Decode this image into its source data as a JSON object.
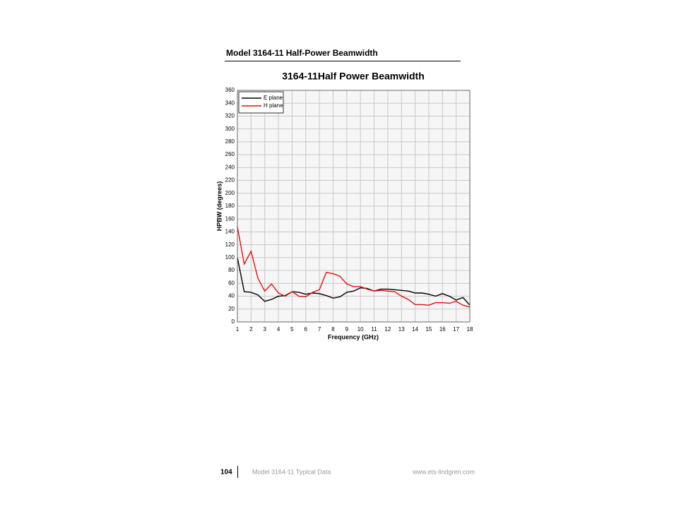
{
  "heading": "Model 3164-11 Half-Power Beamwidth",
  "chart_data": {
    "type": "line",
    "title": "3164-11Half Power Beamwidth",
    "x_label": "Frequency (GHz)",
    "y_label": "HPBW (degrees)",
    "x": [
      1,
      1.5,
      2,
      2.5,
      3,
      3.5,
      4,
      4.5,
      5,
      5.5,
      6,
      6.5,
      7,
      7.5,
      8,
      8.5,
      9,
      9.5,
      10,
      10.5,
      11,
      11.5,
      12,
      12.5,
      13,
      13.5,
      14,
      14.5,
      15,
      15.5,
      16,
      16.5,
      17,
      17.5,
      18
    ],
    "series": [
      {
        "name": "E plane",
        "color": "#000000",
        "values": [
          100,
          47,
          46,
          42,
          32,
          35,
          40,
          41,
          47,
          46,
          43,
          45,
          44,
          41,
          37,
          39,
          46,
          48,
          53,
          52,
          48,
          51,
          51,
          50,
          49,
          48,
          45,
          45,
          43,
          40,
          44,
          40,
          34,
          38,
          26
        ]
      },
      {
        "name": "H plane",
        "color": "#e01010",
        "values": [
          148,
          90,
          110,
          68,
          48,
          59,
          45,
          40,
          47,
          40,
          39,
          46,
          50,
          77,
          75,
          71,
          59,
          55,
          55,
          51,
          48,
          49,
          48,
          47,
          40,
          35,
          27,
          27,
          26,
          30,
          30,
          29,
          32,
          26,
          23
        ]
      }
    ],
    "xlim": [
      1,
      18
    ],
    "xticks": [
      1,
      2,
      3,
      4,
      5,
      6,
      7,
      8,
      9,
      10,
      11,
      12,
      13,
      14,
      15,
      16,
      17,
      18
    ],
    "ylim": [
      0,
      360
    ],
    "yticks": [
      0,
      20,
      40,
      60,
      80,
      100,
      120,
      140,
      160,
      180,
      200,
      220,
      240,
      260,
      280,
      300,
      320,
      340,
      360
    ],
    "grid": true,
    "legend": "upper-left"
  },
  "footer": {
    "page_number": "104",
    "left": "Model 3164-11 Typical Data",
    "right": "www.ets-lindgren.com"
  }
}
